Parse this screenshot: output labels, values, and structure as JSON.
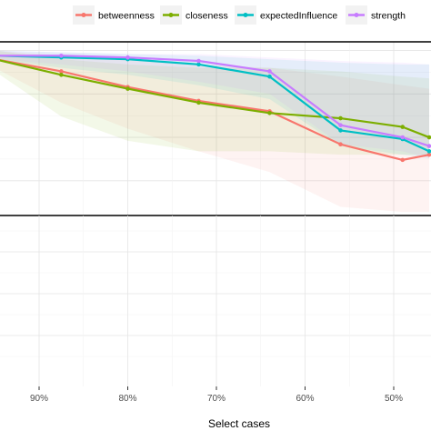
{
  "chart_data": {
    "type": "line",
    "xlabel": "Select cases",
    "x_ticks": [
      {
        "value": 0.9,
        "label": "90%"
      },
      {
        "value": 0.8,
        "label": "80%"
      },
      {
        "value": 0.7,
        "label": "70%"
      },
      {
        "value": 0.6,
        "label": "60%"
      },
      {
        "value": 0.5,
        "label": "50%"
      }
    ],
    "xlim": [
      0.95,
      0.46
    ],
    "x_reversed": true,
    "ylabel": "",
    "panels": [
      "top",
      "bottom"
    ],
    "top_panel_ylim": [
      0.05,
      1.05
    ],
    "legend_position": "top",
    "x": [
      0.95,
      0.875,
      0.8,
      0.72,
      0.64,
      0.56,
      0.49,
      0.46
    ],
    "series": [
      {
        "name": "betweenness",
        "color": "#f8766d",
        "values": [
          0.95,
          0.88,
          0.79,
          0.71,
          0.65,
          0.46,
          0.37,
          0.4
        ],
        "band_lower": [
          0.9,
          0.7,
          0.55,
          0.42,
          0.3,
          0.1,
          0.07,
          0.07
        ],
        "band_upper": [
          1.0,
          0.97,
          0.95,
          0.92,
          0.9,
          0.85,
          0.8,
          0.78
        ]
      },
      {
        "name": "closeness",
        "color": "#7cae00",
        "values": [
          0.95,
          0.86,
          0.78,
          0.7,
          0.64,
          0.61,
          0.56,
          0.5
        ],
        "band_lower": [
          0.88,
          0.62,
          0.48,
          0.42,
          0.42,
          0.4,
          0.4,
          0.4
        ],
        "band_upper": [
          1.0,
          0.95,
          0.92,
          0.9,
          0.9,
          0.88,
          0.85,
          0.84
        ]
      },
      {
        "name": "expectedInfluence",
        "color": "#00bfc4",
        "values": [
          0.97,
          0.96,
          0.95,
          0.92,
          0.85,
          0.54,
          0.49,
          0.42
        ],
        "band_lower": [
          0.95,
          0.9,
          0.86,
          0.8,
          0.72,
          0.45,
          0.4,
          0.38
        ],
        "band_upper": [
          1.0,
          0.99,
          0.98,
          0.97,
          0.95,
          0.93,
          0.92,
          0.92
        ]
      },
      {
        "name": "strength",
        "color": "#c77cff",
        "values": [
          0.97,
          0.97,
          0.96,
          0.94,
          0.88,
          0.57,
          0.5,
          0.45
        ],
        "band_lower": [
          0.95,
          0.92,
          0.88,
          0.82,
          0.75,
          0.46,
          0.42,
          0.38
        ],
        "band_upper": [
          1.0,
          0.99,
          0.98,
          0.98,
          0.96,
          0.94,
          0.93,
          0.92
        ]
      }
    ],
    "grid": true
  }
}
